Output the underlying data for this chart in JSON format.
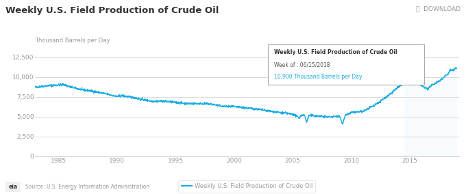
{
  "title": "Weekly U.S. Field Production of Crude Oil",
  "ylabel": "Thousand Barrels per Day",
  "source": "Source: U.S. Energy Information Administration",
  "legend_label": "Weekly U.S. Field Production of Crude Oil",
  "tooltip_title": "Weekly U.S. Field Production of Crude Oil",
  "tooltip_week": "Week of : 06/15/2018",
  "tooltip_value": "10,900 Thousand Barrels per Day",
  "download_text": "⤓  DOWNLOAD",
  "line_color": "#1aace3",
  "highlight_color": "#cce8f6",
  "background_color": "#ffffff",
  "grid_color": "#cccccc",
  "title_color": "#333333",
  "label_color": "#999999",
  "tooltip_border": "#1aace3",
  "tooltip_text_color": "#333333",
  "tooltip_week_color": "#555555",
  "xlim": [
    1983.0,
    2019.2
  ],
  "ylim": [
    0,
    13000
  ],
  "yticks": [
    0,
    2500,
    5000,
    7500,
    10000,
    12500
  ],
  "xticks": [
    1985,
    1990,
    1995,
    2000,
    2005,
    2010,
    2015
  ],
  "figsize": [
    6.8,
    2.84
  ],
  "dpi": 100
}
